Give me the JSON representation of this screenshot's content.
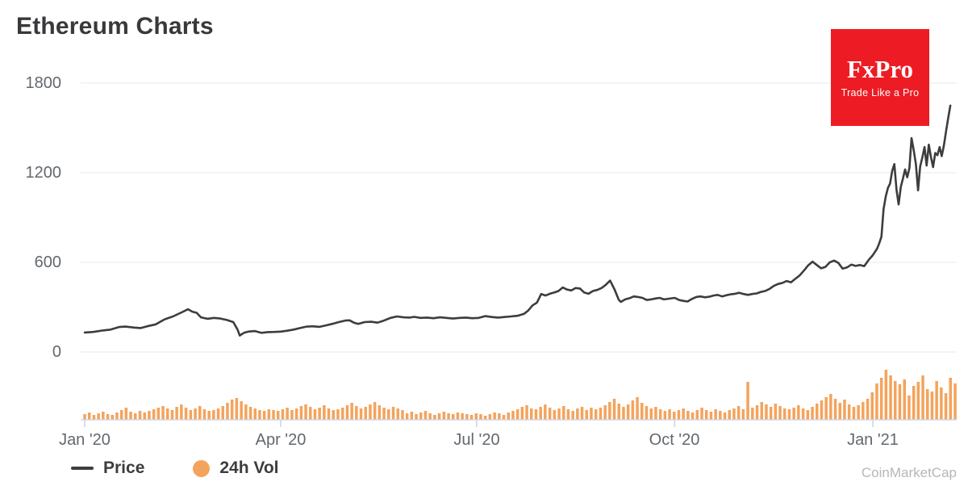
{
  "header": {
    "title": "Ethereum Charts"
  },
  "fxpro_badge": {
    "name": "FxPro",
    "tagline": "Trade Like a Pro",
    "bg_color": "#ed1c24",
    "text_color": "#ffffff"
  },
  "legend": {
    "items": [
      {
        "label": "Price",
        "swatch": "line",
        "color": "#3d3d3e"
      },
      {
        "label": "24h Vol",
        "swatch": "dot",
        "color": "#f4a35c"
      }
    ]
  },
  "watermark": "CoinMarketCap",
  "chart_data": {
    "type": "line+bar",
    "title": "Ethereum Charts",
    "grid": "horizontal-only",
    "legend_position": "bottom-left",
    "x_axis": {
      "tick_labels": [
        "Jan '20",
        "Apr '20",
        "Jul '20",
        "Oct '20",
        "Jan '21"
      ],
      "tick_days": [
        0,
        91,
        182,
        274,
        366
      ],
      "domain_days": [
        0,
        404
      ],
      "axis_color": "#ccd6eb"
    },
    "y_axis": {
      "ticks": [
        0,
        600,
        1200,
        1800
      ],
      "tick_labels": [
        "0",
        "600",
        "1200",
        "1800"
      ],
      "unit": "USD",
      "range": [
        0,
        1800
      ],
      "gridline_color": "#e9e9e9",
      "label_color": "#63686e"
    },
    "series": [
      {
        "name": "Price",
        "type": "line",
        "color": "#3d3d3e",
        "points_day_price": [
          [
            0,
            130
          ],
          [
            4,
            134
          ],
          [
            8,
            143
          ],
          [
            12,
            150
          ],
          [
            16,
            167
          ],
          [
            19,
            170
          ],
          [
            23,
            163
          ],
          [
            26,
            160
          ],
          [
            29,
            172
          ],
          [
            33,
            185
          ],
          [
            37,
            218
          ],
          [
            41,
            238
          ],
          [
            45,
            265
          ],
          [
            48,
            286
          ],
          [
            50,
            270
          ],
          [
            52,
            262
          ],
          [
            54,
            232
          ],
          [
            57,
            222
          ],
          [
            60,
            228
          ],
          [
            63,
            224
          ],
          [
            66,
            214
          ],
          [
            69,
            200
          ],
          [
            71,
            150
          ],
          [
            72,
            110
          ],
          [
            74,
            128
          ],
          [
            76,
            136
          ],
          [
            79,
            140
          ],
          [
            82,
            128
          ],
          [
            85,
            133
          ],
          [
            88,
            134
          ],
          [
            91,
            136
          ],
          [
            94,
            142
          ],
          [
            97,
            150
          ],
          [
            100,
            160
          ],
          [
            103,
            170
          ],
          [
            106,
            172
          ],
          [
            109,
            168
          ],
          [
            112,
            178
          ],
          [
            115,
            188
          ],
          [
            118,
            200
          ],
          [
            121,
            210
          ],
          [
            123,
            212
          ],
          [
            125,
            196
          ],
          [
            127,
            188
          ],
          [
            130,
            200
          ],
          [
            133,
            202
          ],
          [
            136,
            196
          ],
          [
            139,
            210
          ],
          [
            142,
            228
          ],
          [
            145,
            238
          ],
          [
            148,
            232
          ],
          [
            151,
            230
          ],
          [
            153,
            235
          ],
          [
            156,
            228
          ],
          [
            159,
            230
          ],
          [
            162,
            226
          ],
          [
            165,
            232
          ],
          [
            168,
            228
          ],
          [
            171,
            224
          ],
          [
            174,
            228
          ],
          [
            177,
            230
          ],
          [
            180,
            226
          ],
          [
            183,
            228
          ],
          [
            186,
            240
          ],
          [
            189,
            234
          ],
          [
            192,
            230
          ],
          [
            195,
            234
          ],
          [
            198,
            238
          ],
          [
            201,
            242
          ],
          [
            204,
            255
          ],
          [
            206,
            278
          ],
          [
            208,
            312
          ],
          [
            210,
            330
          ],
          [
            212,
            388
          ],
          [
            214,
            378
          ],
          [
            216,
            390
          ],
          [
            218,
            398
          ],
          [
            220,
            408
          ],
          [
            222,
            432
          ],
          [
            224,
            418
          ],
          [
            226,
            412
          ],
          [
            228,
            428
          ],
          [
            230,
            425
          ],
          [
            232,
            398
          ],
          [
            234,
            390
          ],
          [
            236,
            408
          ],
          [
            238,
            415
          ],
          [
            240,
            428
          ],
          [
            242,
            450
          ],
          [
            244,
            478
          ],
          [
            246,
            420
          ],
          [
            248,
            350
          ],
          [
            249,
            335
          ],
          [
            251,
            352
          ],
          [
            253,
            360
          ],
          [
            255,
            372
          ],
          [
            257,
            368
          ],
          [
            259,
            362
          ],
          [
            261,
            348
          ],
          [
            263,
            352
          ],
          [
            265,
            358
          ],
          [
            267,
            362
          ],
          [
            269,
            352
          ],
          [
            271,
            356
          ],
          [
            274,
            362
          ],
          [
            276,
            348
          ],
          [
            278,
            342
          ],
          [
            280,
            338
          ],
          [
            282,
            355
          ],
          [
            284,
            368
          ],
          [
            286,
            372
          ],
          [
            288,
            366
          ],
          [
            290,
            370
          ],
          [
            292,
            378
          ],
          [
            294,
            382
          ],
          [
            296,
            372
          ],
          [
            298,
            380
          ],
          [
            300,
            386
          ],
          [
            302,
            390
          ],
          [
            304,
            396
          ],
          [
            306,
            388
          ],
          [
            308,
            382
          ],
          [
            310,
            388
          ],
          [
            312,
            392
          ],
          [
            314,
            402
          ],
          [
            316,
            408
          ],
          [
            318,
            422
          ],
          [
            320,
            442
          ],
          [
            322,
            455
          ],
          [
            324,
            462
          ],
          [
            326,
            475
          ],
          [
            328,
            466
          ],
          [
            330,
            490
          ],
          [
            332,
            512
          ],
          [
            334,
            545
          ],
          [
            336,
            580
          ],
          [
            338,
            605
          ],
          [
            340,
            582
          ],
          [
            342,
            560
          ],
          [
            344,
            570
          ],
          [
            346,
            600
          ],
          [
            348,
            612
          ],
          [
            350,
            596
          ],
          [
            352,
            558
          ],
          [
            354,
            566
          ],
          [
            356,
            585
          ],
          [
            358,
            576
          ],
          [
            360,
            582
          ],
          [
            362,
            574
          ],
          [
            364,
            615
          ],
          [
            366,
            648
          ],
          [
            368,
            692
          ],
          [
            369,
            728
          ],
          [
            370,
            772
          ],
          [
            371,
            955
          ],
          [
            372,
            1040
          ],
          [
            373,
            1098
          ],
          [
            374,
            1128
          ],
          [
            375,
            1212
          ],
          [
            376,
            1258
          ],
          [
            377,
            1085
          ],
          [
            378,
            988
          ],
          [
            379,
            1105
          ],
          [
            380,
            1162
          ],
          [
            381,
            1222
          ],
          [
            382,
            1170
          ],
          [
            383,
            1232
          ],
          [
            384,
            1432
          ],
          [
            385,
            1352
          ],
          [
            386,
            1258
          ],
          [
            387,
            1082
          ],
          [
            388,
            1242
          ],
          [
            389,
            1302
          ],
          [
            390,
            1372
          ],
          [
            391,
            1248
          ],
          [
            392,
            1388
          ],
          [
            393,
            1305
          ],
          [
            394,
            1238
          ],
          [
            395,
            1332
          ],
          [
            396,
            1318
          ],
          [
            397,
            1372
          ],
          [
            398,
            1312
          ],
          [
            399,
            1382
          ],
          [
            400,
            1478
          ],
          [
            401,
            1565
          ],
          [
            402,
            1650
          ]
        ]
      },
      {
        "name": "24h Vol",
        "type": "bar",
        "color": "#f4a35c",
        "scale_note": "relative heights, no visible volume axis",
        "values": [
          7,
          9,
          6,
          8,
          10,
          7,
          6,
          9,
          12,
          15,
          10,
          8,
          11,
          9,
          11,
          13,
          15,
          17,
          14,
          12,
          16,
          19,
          15,
          12,
          14,
          17,
          13,
          11,
          12,
          14,
          17,
          21,
          25,
          27,
          23,
          19,
          16,
          14,
          12,
          11,
          13,
          12,
          11,
          13,
          15,
          12,
          14,
          17,
          19,
          16,
          13,
          15,
          18,
          14,
          12,
          13,
          15,
          18,
          21,
          17,
          14,
          16,
          19,
          22,
          18,
          15,
          13,
          16,
          14,
          12,
          8,
          10,
          7,
          9,
          11,
          8,
          6,
          8,
          10,
          8,
          7,
          9,
          8,
          7,
          6,
          8,
          7,
          5,
          7,
          9,
          8,
          6,
          9,
          11,
          13,
          16,
          18,
          14,
          13,
          16,
          19,
          15,
          12,
          14,
          17,
          13,
          11,
          14,
          16,
          12,
          15,
          13,
          15,
          18,
          22,
          26,
          20,
          16,
          19,
          24,
          28,
          21,
          17,
          14,
          16,
          13,
          11,
          13,
          10,
          12,
          14,
          11,
          9,
          12,
          15,
          12,
          10,
          13,
          11,
          9,
          12,
          14,
          17,
          13,
          47,
          15,
          18,
          22,
          19,
          16,
          20,
          17,
          14,
          13,
          15,
          18,
          14,
          12,
          16,
          20,
          24,
          28,
          32,
          26,
          21,
          25,
          19,
          16,
          18,
          22,
          26,
          34,
          45,
          52,
          62,
          55,
          48,
          44,
          50,
          30,
          42,
          47,
          55,
          38,
          35,
          48,
          40,
          33,
          52,
          45
        ]
      }
    ]
  }
}
